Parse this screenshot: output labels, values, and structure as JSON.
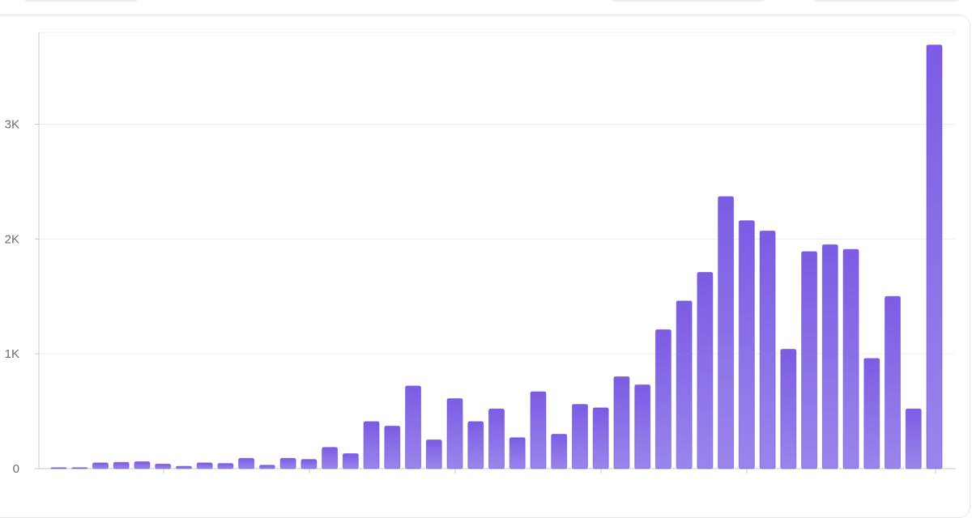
{
  "colors": {
    "bar_top": "#7b5ce3",
    "bar_bottom": "#9a85ec",
    "bar_stroke": "#6a4fd6",
    "grid": "#ececee",
    "axis": "#c8c8cc",
    "tick_text": "#6b6b70"
  },
  "chart_data": {
    "type": "bar",
    "title": "",
    "xlabel": "",
    "ylabel": "",
    "ylim": [
      0,
      3800
    ],
    "yticks": [
      0,
      1000,
      2000,
      3000
    ],
    "ytick_labels": [
      "0",
      "1K",
      "2K",
      "3K"
    ],
    "grid": true,
    "series": [
      {
        "values": [
          5,
          8,
          50,
          55,
          60,
          40,
          20,
          50,
          45,
          90,
          30,
          90,
          80,
          185,
          130,
          410,
          370,
          720,
          250,
          610,
          410,
          520,
          270,
          670,
          300,
          560,
          530,
          800,
          730,
          1210,
          1460,
          1710,
          2370,
          2160,
          2070,
          1040,
          1890,
          1950,
          1910,
          960,
          1500,
          520,
          3690
        ]
      }
    ]
  }
}
